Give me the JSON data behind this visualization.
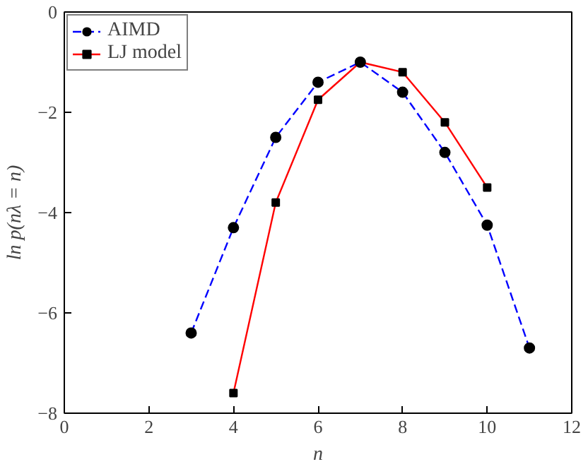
{
  "chart_data": {
    "type": "line",
    "xlabel": "n",
    "ylabel": "ln p(nλ = n)",
    "xlim": [
      0,
      12
    ],
    "ylim": [
      -8,
      0
    ],
    "xticks": [
      0,
      2,
      4,
      6,
      8,
      10,
      12
    ],
    "yticks": [
      -8,
      -6,
      -4,
      -2,
      0
    ],
    "grid": false,
    "legend": "top left",
    "series": [
      {
        "name": "AIMD",
        "color": "#0000ff",
        "marker": "circle",
        "line_style": "dashed",
        "x": [
          3,
          4,
          5,
          6,
          7,
          8,
          9,
          10,
          11
        ],
        "values": [
          -6.4,
          -4.3,
          -2.5,
          -1.4,
          -1.0,
          -1.6,
          -2.8,
          -4.25,
          -6.7
        ]
      },
      {
        "name": "LJ model",
        "color": "#ff0000",
        "marker": "square",
        "line_style": "solid",
        "x": [
          4,
          5,
          6,
          7,
          8,
          9,
          10
        ],
        "values": [
          -7.6,
          -3.8,
          -1.75,
          -1.0,
          -1.2,
          -2.2,
          -3.5
        ]
      }
    ]
  }
}
